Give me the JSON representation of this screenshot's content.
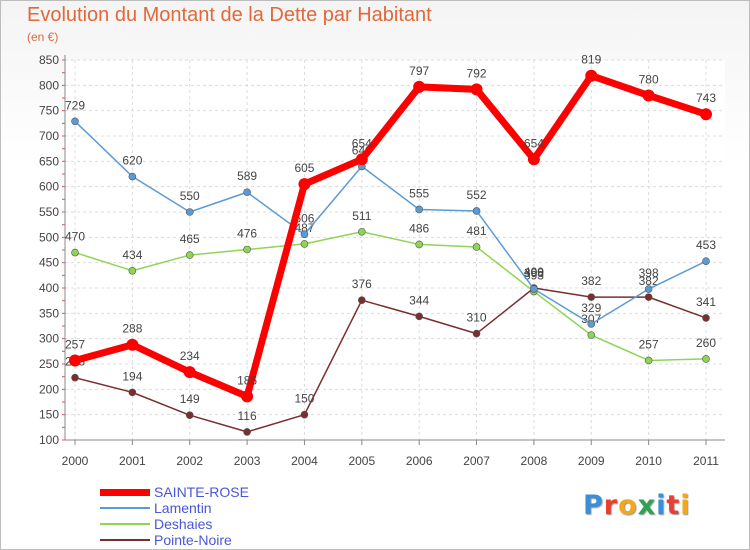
{
  "header": {
    "title": "Evolution du Montant de la Dette par Habitant",
    "subtitle": "(en €)"
  },
  "logo": {
    "text": "Proxiti",
    "colors": [
      "#3b8fd8",
      "#e8402f",
      "#f2a81d",
      "#2aa352",
      "#3b8fd8",
      "#e8402f",
      "#f2a81d"
    ]
  },
  "chart_data": {
    "type": "line",
    "title": "Evolution du Montant de la Dette par Habitant",
    "subtitle": "(en €)",
    "x": [
      "2000",
      "2001",
      "2002",
      "2003",
      "2004",
      "2005",
      "2006",
      "2007",
      "2008",
      "2009",
      "2010",
      "2011"
    ],
    "ylim": [
      100,
      850
    ],
    "yticks": [
      100,
      150,
      200,
      250,
      300,
      350,
      400,
      450,
      500,
      550,
      600,
      650,
      700,
      750,
      800,
      850
    ],
    "grid": true,
    "legend_position": "bottom-left",
    "series": [
      {
        "name": "SAINTE-ROSE",
        "color": "#ff0000",
        "values": [
          257,
          288,
          234,
          186,
          605,
          654,
          797,
          792,
          654,
          819,
          780,
          743
        ]
      },
      {
        "name": "Lamentin",
        "color": "#5b9bd5",
        "values": [
          729,
          620,
          550,
          589,
          506,
          640,
          555,
          552,
          398,
          329,
          398,
          453
        ]
      },
      {
        "name": "Deshaies",
        "color": "#8fd455",
        "values": [
          470,
          434,
          465,
          476,
          487,
          511,
          486,
          481,
          393,
          307,
          257,
          260
        ]
      },
      {
        "name": "Pointe-Noire",
        "color": "#7a2e2e",
        "values": [
          223,
          194,
          149,
          116,
          150,
          376,
          344,
          310,
          400,
          382,
          382,
          341
        ]
      }
    ]
  }
}
